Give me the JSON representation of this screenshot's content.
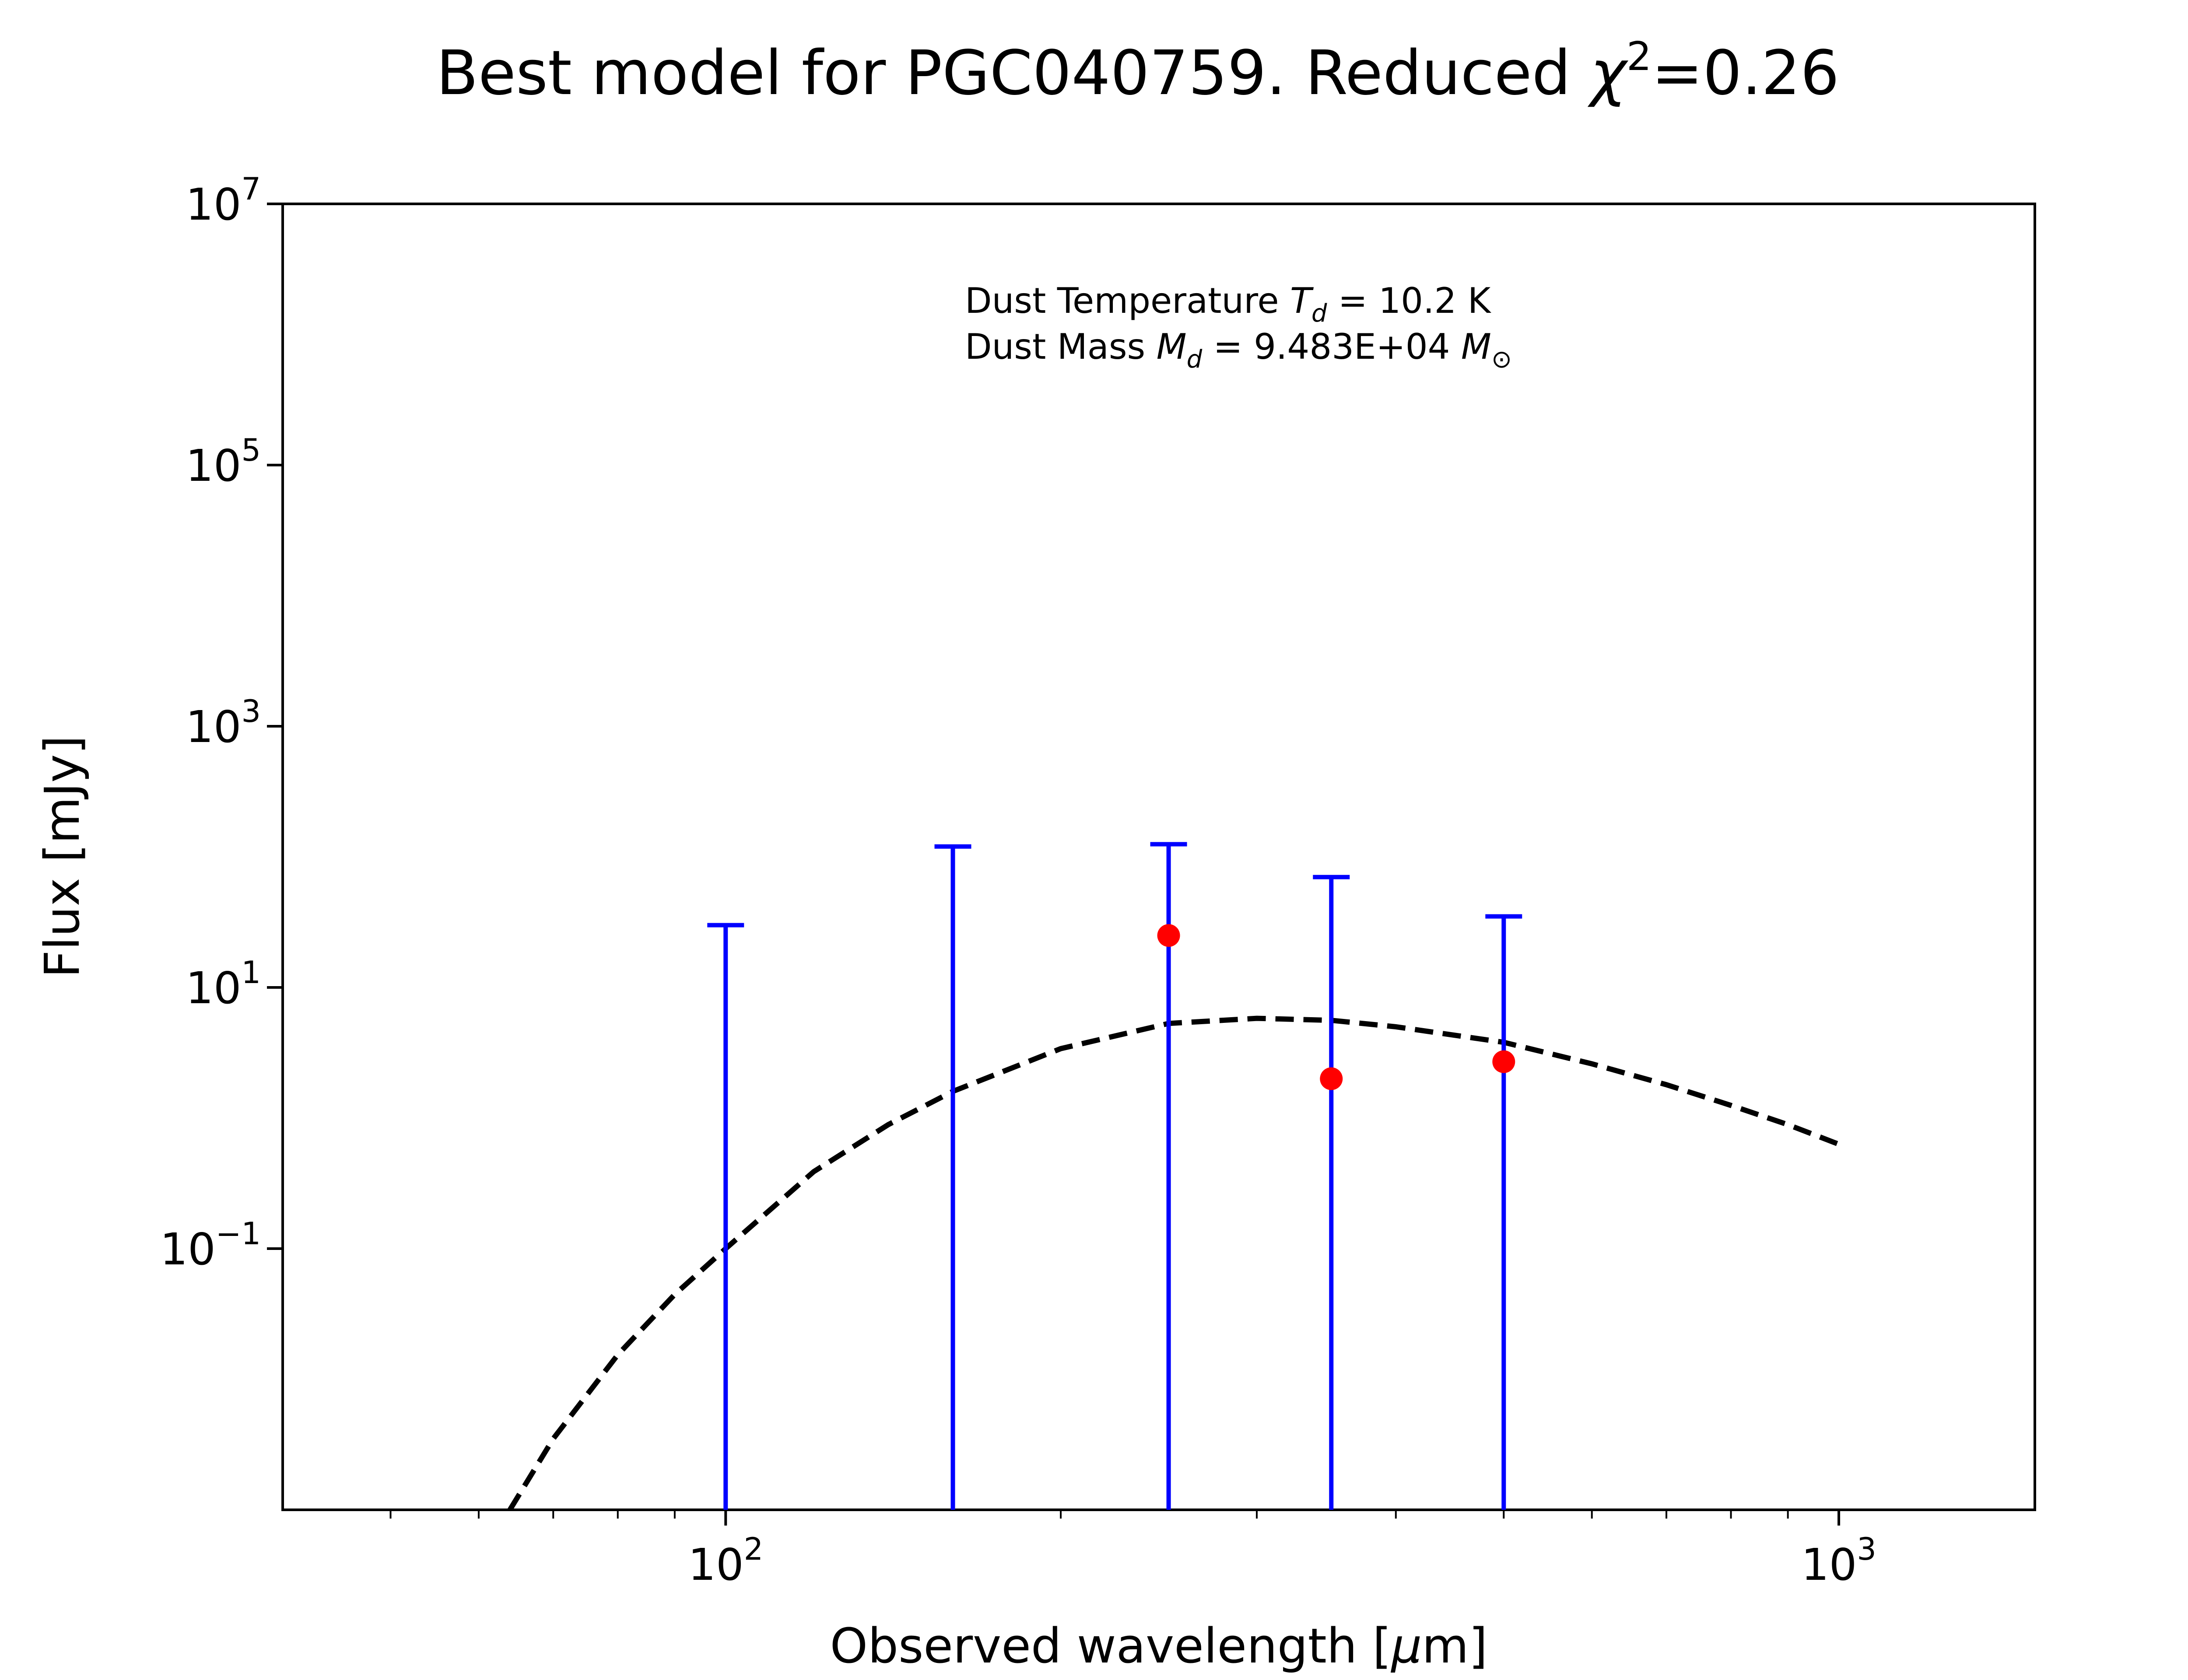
{
  "chart_data": {
    "type": "scatter",
    "title_prefix": "Best model for PGC040759. Reduced ",
    "title_chi": "χ",
    "title_sup": "2",
    "title_suffix": "=0.26",
    "xlabel_prefix": "Observed wavelength [",
    "xlabel_mu": "μ",
    "xlabel_suffix": "m]",
    "ylabel": "Flux [mJy]",
    "xscale": "log",
    "yscale": "log",
    "xlim": [
      40,
      1500
    ],
    "ylim": [
      0.001,
      10000000
    ],
    "x_ticks": [
      {
        "value": 100,
        "base": "10",
        "exp": "2"
      },
      {
        "value": 1000,
        "base": "10",
        "exp": "3"
      }
    ],
    "y_ticks": [
      {
        "value": 0.1,
        "base": "10",
        "exp": "−1"
      },
      {
        "value": 10,
        "base": "10",
        "exp": "1"
      },
      {
        "value": 1000,
        "base": "10",
        "exp": "3"
      },
      {
        "value": 100000,
        "base": "10",
        "exp": "5"
      },
      {
        "value": 10000000,
        "base": "10",
        "exp": "7"
      }
    ],
    "annotation": {
      "line1_prefix": "Dust Temperature ",
      "line1_sym": "T",
      "line1_sub": "d",
      "line1_suffix": " = 10.2 K",
      "line2_prefix": "Dust Mass ",
      "line2_sym": "M",
      "line2_sub": "d",
      "line2_mid": " = 9.483E+04 ",
      "line2_unit": "M",
      "line2_unit_sub": "⊙"
    },
    "upper_limits": [
      {
        "x": 100,
        "y": 30
      },
      {
        "x": 160,
        "y": 120
      },
      {
        "x": 250,
        "y": 125
      },
      {
        "x": 350,
        "y": 70
      },
      {
        "x": 500,
        "y": 35
      }
    ],
    "detections": [
      {
        "x": 250,
        "y": 25
      },
      {
        "x": 350,
        "y": 2.0
      },
      {
        "x": 500,
        "y": 2.7
      }
    ],
    "model": {
      "x": [
        64,
        70,
        80,
        90,
        100,
        120,
        140,
        160,
        200,
        250,
        300,
        350,
        400,
        500,
        600,
        700,
        800,
        900,
        1000
      ],
      "y": [
        0.001,
        0.0035,
        0.0154,
        0.0446,
        0.1,
        0.389,
        0.891,
        1.6,
        3.4,
        5.3,
        5.8,
        5.6,
        5.0,
        3.8,
        2.6,
        1.8,
        1.25,
        0.89,
        0.63
      ]
    },
    "colors": {
      "error_bars": "#0000ff",
      "points": "#ff0000",
      "model": "#000000",
      "axes": "#000000"
    }
  }
}
